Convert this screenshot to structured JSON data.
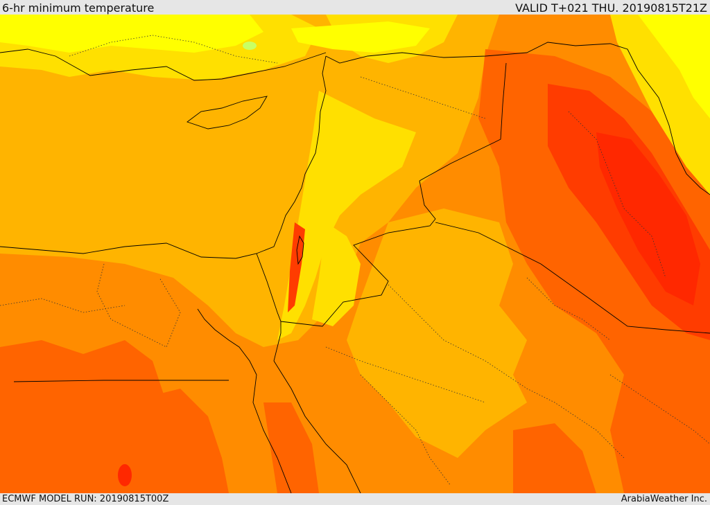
{
  "header": {
    "title": "6-hr minimum temperature",
    "valid_time": "VALID T+021 THU. 20190815T21Z"
  },
  "footer": {
    "model_run": "ECMWF MODEL RUN: 20190815T00Z",
    "credit": "ArabiaWeather Inc."
  },
  "map": {
    "palette": {
      "pale_yellow": "#ffff00",
      "yellow": "#ffe000",
      "light_orange": "#ffb400",
      "orange": "#ff8c00",
      "dark_orange": "#ff6400",
      "red_orange": "#ff3c00",
      "red": "#ff2800",
      "light_green": "#c8ff64",
      "border": "#000000"
    }
  }
}
